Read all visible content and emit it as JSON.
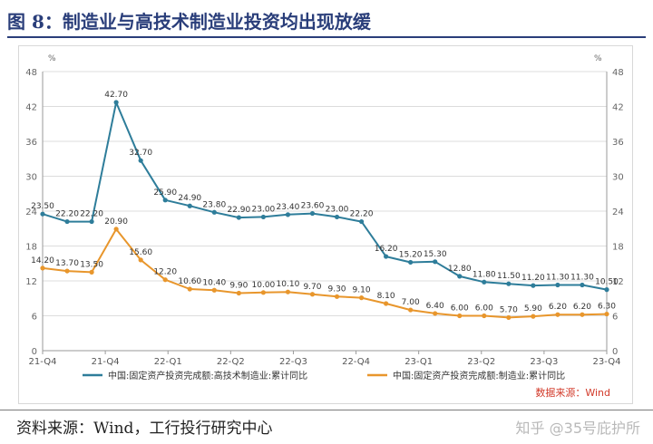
{
  "header": {
    "title": "图 8：制造业与高技术制造业投资均出现放缓"
  },
  "footer": {
    "source": "资料来源：Wind，工行投行研究中心",
    "watermark": "知乎 @35号庇护所"
  },
  "chart_data": {
    "type": "line",
    "y_unit_left": "%",
    "y_unit_right": "%",
    "ylim": [
      0,
      48
    ],
    "yticks": [
      0,
      6,
      12,
      18,
      24,
      30,
      36,
      42,
      48
    ],
    "grid": true,
    "legend_position": "bottom",
    "data_source_note": "数据来源：Wind",
    "x_tick_labels": [
      "21-Q4",
      "21-Q4",
      "22-Q1",
      "22-Q2",
      "22-Q3",
      "22-Q4",
      "23-Q1",
      "23-Q2",
      "23-Q3",
      "23-Q4"
    ],
    "series": [
      {
        "name": "中国:固定资产投资完成额:高技术制造业:累计同比",
        "color": "#2e7d9a",
        "values": [
          23.5,
          22.2,
          22.2,
          42.7,
          32.7,
          25.9,
          24.9,
          23.8,
          22.9,
          23.0,
          23.4,
          23.6,
          23.0,
          22.2,
          16.2,
          15.2,
          15.3,
          12.8,
          11.8,
          11.5,
          11.2,
          11.3,
          11.3,
          10.5
        ],
        "labels": [
          "23.50",
          "22.20",
          "22.20",
          "42.70",
          "32.70",
          "25.90",
          "24.90",
          "23.80",
          "22.90",
          "23.00",
          "23.40",
          "23.60",
          "23.00",
          "22.20",
          "16.20",
          "15.20",
          "15.30",
          "12.80",
          "11.80",
          "11.50",
          "11.20",
          "11.30",
          "11.30",
          "10.50"
        ]
      },
      {
        "name": "中国:固定资产投资完成额:制造业:累计同比",
        "color": "#e8962c",
        "values": [
          14.2,
          13.7,
          13.5,
          20.9,
          15.6,
          12.2,
          10.6,
          10.4,
          9.9,
          10.0,
          10.1,
          9.7,
          9.3,
          9.1,
          8.1,
          7.0,
          6.4,
          6.0,
          6.0,
          5.7,
          5.9,
          6.2,
          6.2,
          6.3
        ],
        "labels": [
          "14.20",
          "13.70",
          "13.50",
          "20.90",
          "15.60",
          "12.20",
          "10.60",
          "10.40",
          "9.90",
          "10.00",
          "10.10",
          "9.70",
          "9.30",
          "9.10",
          "8.10",
          "7.00",
          "6.40",
          "6.00",
          "6.00",
          "5.70",
          "5.90",
          "6.20",
          "6.20",
          "6.30"
        ]
      }
    ]
  }
}
